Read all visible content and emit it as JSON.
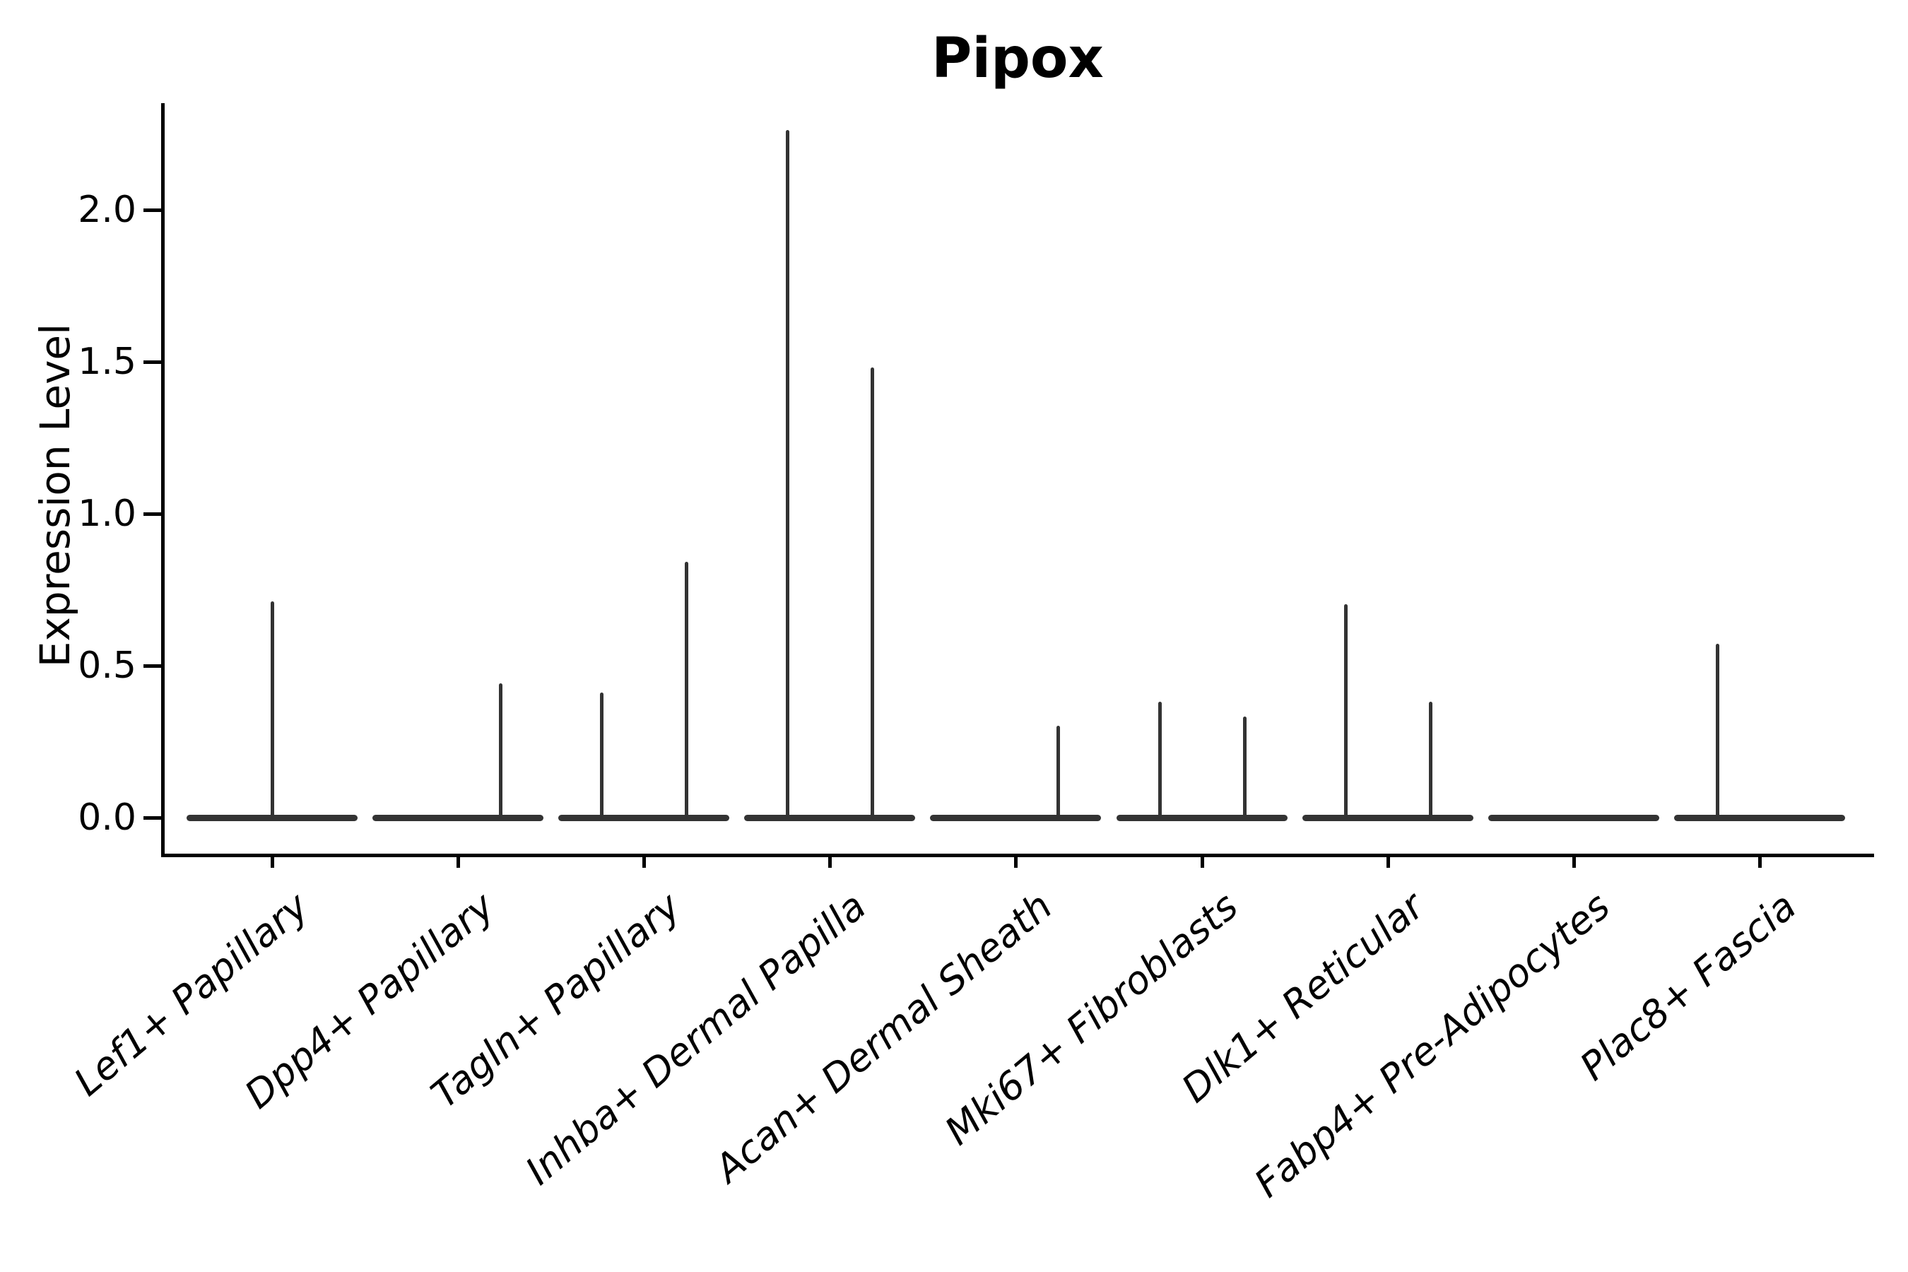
{
  "chart_data": {
    "type": "violin",
    "title": "Pipox",
    "xlabel": "",
    "ylabel": "Expression Level",
    "grid": false,
    "legend": false,
    "yticks": [
      0.0,
      0.5,
      1.0,
      1.5,
      2.0
    ],
    "ytick_labels": [
      "0.0",
      "0.5",
      "1.0",
      "1.5",
      "2.0"
    ],
    "ylim": [
      -0.12,
      2.37
    ],
    "categories": [
      "Lef1+ Papillary",
      "Dpp4+ Papillary",
      "Tagln+ Papillary",
      "Inhba+ Dermal Papilla",
      "Acan+ Dermal Sheath",
      "Mki67+ Fibroblasts",
      "Dlk1+ Reticular",
      "Fabp4+ Pre-Adipocytes",
      "Plac8+ Fascia"
    ],
    "violins": [
      {
        "category": "Lef1+ Papillary",
        "body_value": 0,
        "max_spikes": [
          {
            "pos": "center",
            "value": 0.71
          }
        ]
      },
      {
        "category": "Dpp4+ Papillary",
        "body_value": 0,
        "max_spikes": [
          {
            "pos": "right",
            "value": 0.44
          }
        ]
      },
      {
        "category": "Tagln+ Papillary",
        "body_value": 0,
        "max_spikes": [
          {
            "pos": "left",
            "value": 0.41
          },
          {
            "pos": "right",
            "value": 0.84
          }
        ]
      },
      {
        "category": "Inhba+ Dermal Papilla",
        "body_value": 0,
        "max_spikes": [
          {
            "pos": "left",
            "value": 2.26
          },
          {
            "pos": "right",
            "value": 1.48
          }
        ]
      },
      {
        "category": "Acan+ Dermal Sheath",
        "body_value": 0,
        "max_spikes": [
          {
            "pos": "right",
            "value": 0.3
          }
        ]
      },
      {
        "category": "Mki67+ Fibroblasts",
        "body_value": 0,
        "max_spikes": [
          {
            "pos": "left",
            "value": 0.38
          },
          {
            "pos": "right",
            "value": 0.33
          }
        ]
      },
      {
        "category": "Dlk1+ Reticular",
        "body_value": 0,
        "max_spikes": [
          {
            "pos": "left",
            "value": 0.7
          },
          {
            "pos": "right",
            "value": 0.38
          }
        ]
      },
      {
        "category": "Fabp4+ Pre-Adipocytes",
        "body_value": 0,
        "max_spikes": []
      },
      {
        "category": "Plac8+ Fascia",
        "body_value": 0,
        "max_spikes": [
          {
            "pos": "left",
            "value": 0.57
          }
        ]
      }
    ],
    "colors": {
      "violin": "#333333",
      "axis": "#000000",
      "text": "#000000"
    }
  }
}
